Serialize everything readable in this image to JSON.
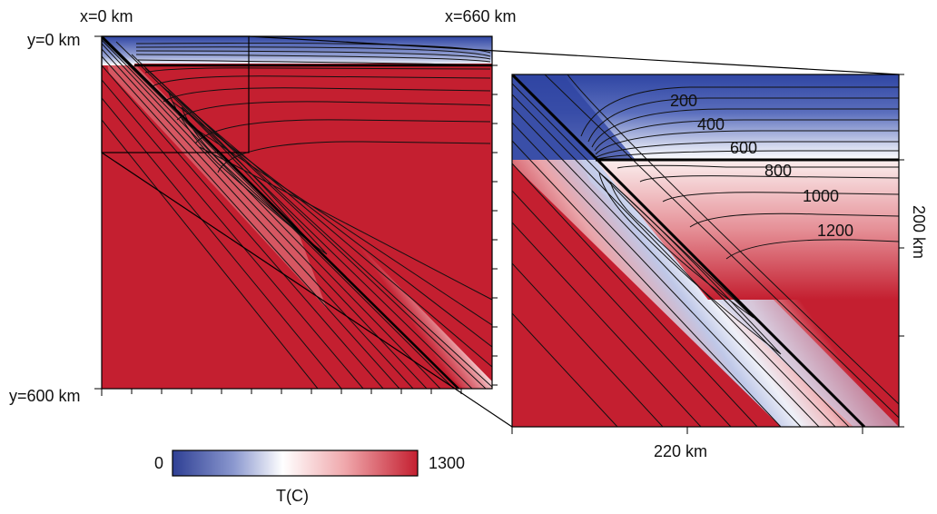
{
  "left_panel": {
    "x_start_label": "x=0 km",
    "x_end_label": "x=660 km",
    "y_top_label": "y=0 km",
    "y_bottom_label": "y=600 km"
  },
  "right_panel": {
    "contour_labels": [
      "200",
      "400",
      "600",
      "800",
      "1000",
      "1200"
    ],
    "x_label": "220 km",
    "y_label": "200 km"
  },
  "colorbar": {
    "min_label": "0",
    "max_label": "1300",
    "title": "T(C)",
    "colors": [
      "#2e3f94",
      "#8b98cf",
      "#ffffff",
      "#f0a9ad",
      "#c41f30"
    ]
  }
}
